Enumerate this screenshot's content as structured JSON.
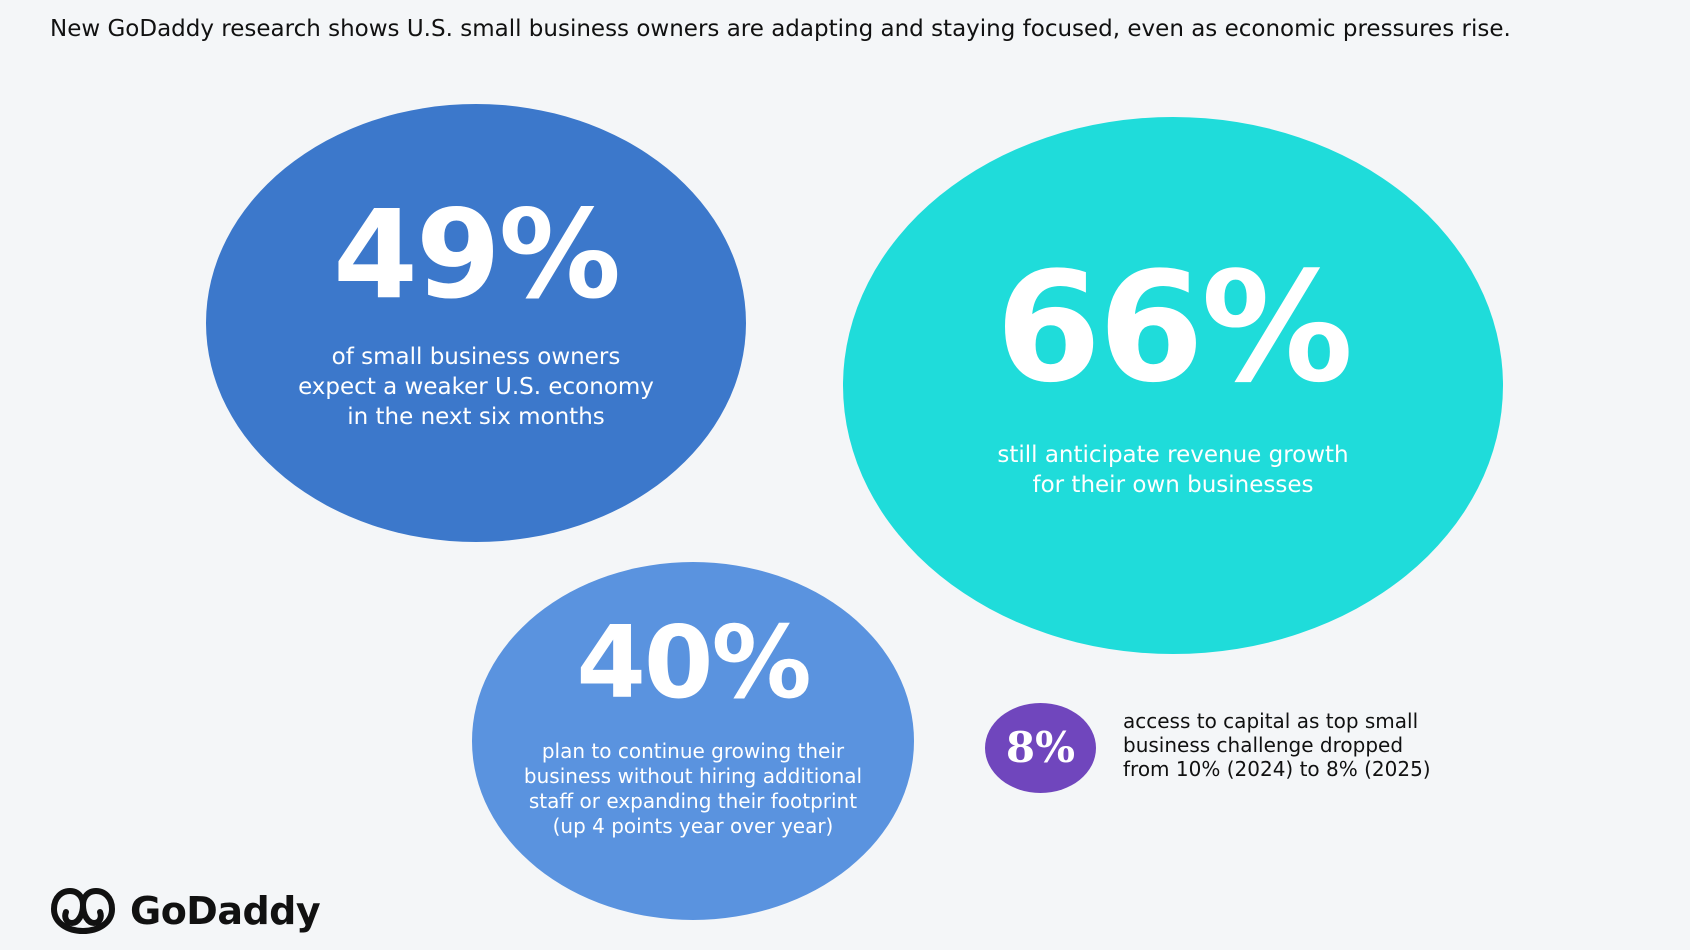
{
  "headline": "New GoDaddy research shows U.S. small business owners are adapting and staying focused, even as economic pressures rise.",
  "colors": {
    "background": "#f4f6f8",
    "stat_49": "#3c78cb",
    "stat_66": "#1fdcda",
    "stat_40": "#5a93df",
    "stat_8": "#7046bd"
  },
  "chart_data": {
    "type": "bubble",
    "series": [
      {
        "value": "49%",
        "label": "of small business owners\nexpect a weaker U.S. economy\nin the next six months"
      },
      {
        "value": "66%",
        "label": "still anticipate revenue growth\nfor their own businesses"
      },
      {
        "value": "40%",
        "label": "plan to continue growing their\nbusiness without hiring additional\nstaff or expanding their footprint\n(up 4 points year over year)"
      },
      {
        "value": "8%",
        "label": "access to capital as top small\nbusiness challenge dropped\nfrom 10% (2024) to 8% (2025)"
      }
    ]
  },
  "logo": {
    "icon": "godaddy-logo-icon",
    "text": "GoDaddy"
  }
}
